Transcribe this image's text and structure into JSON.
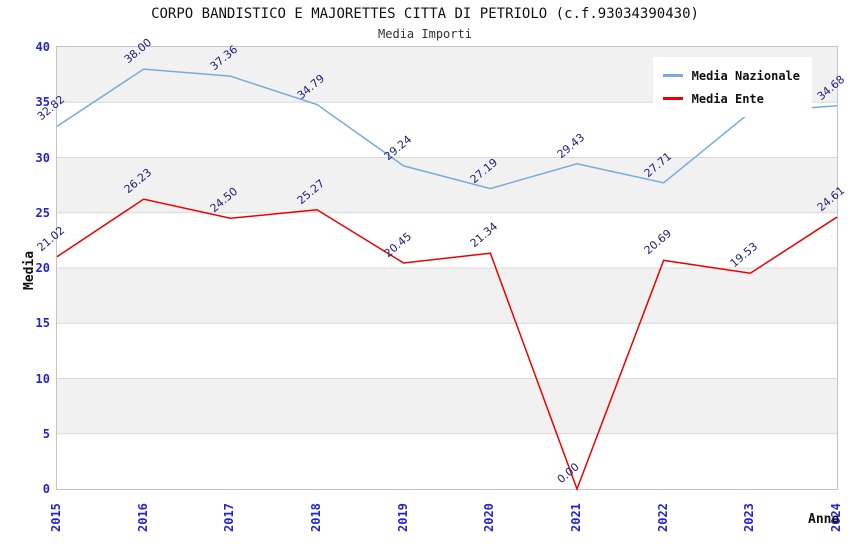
{
  "header": {
    "title": "CORPO BANDISTICO E MAJORETTES CITTA DI PETRIOLO (c.f.93034390430)",
    "subtitle": "Media Importi"
  },
  "chart_data": {
    "type": "line",
    "categories": [
      "2015",
      "2016",
      "2017",
      "2018",
      "2019",
      "2020",
      "2021",
      "2022",
      "2023",
      "2024"
    ],
    "series": [
      {
        "name": "Media Nazionale",
        "color": "#79a9df",
        "values": [
          32.82,
          38.0,
          37.36,
          34.79,
          29.24,
          27.19,
          29.43,
          27.71,
          34.1,
          34.68
        ],
        "labels": [
          "32.82",
          "38.00",
          "37.36",
          "34.79",
          "29.24",
          "27.19",
          "29.43",
          "27.71",
          "34.10",
          "34.68"
        ]
      },
      {
        "name": "Media Ente",
        "color": "#ee0000",
        "values": [
          21.02,
          26.23,
          24.5,
          25.27,
          20.45,
          21.34,
          0.0,
          20.69,
          19.53,
          24.61
        ],
        "labels": [
          "21.02",
          "26.23",
          "24.50",
          "25.27",
          "20.45",
          "21.34",
          "0.00",
          "20.69",
          "19.53",
          "24.61"
        ]
      }
    ],
    "xlabel": "Anno",
    "ylabel": "Media",
    "ylim": [
      0,
      40
    ],
    "yticks": [
      0,
      5,
      10,
      15,
      20,
      25,
      30,
      35,
      40
    ],
    "grid": true,
    "legend_position": "top-right"
  },
  "colors": {
    "axis_tick_text": "#2424ce",
    "point_label_text": "#1b1b78",
    "band_gray": "#f1f1f1",
    "gridline": "#d9d9d9",
    "plot_border": "#c4c4c4",
    "series_nazionale": "#79a9df",
    "series_ente": "#ee0000"
  }
}
